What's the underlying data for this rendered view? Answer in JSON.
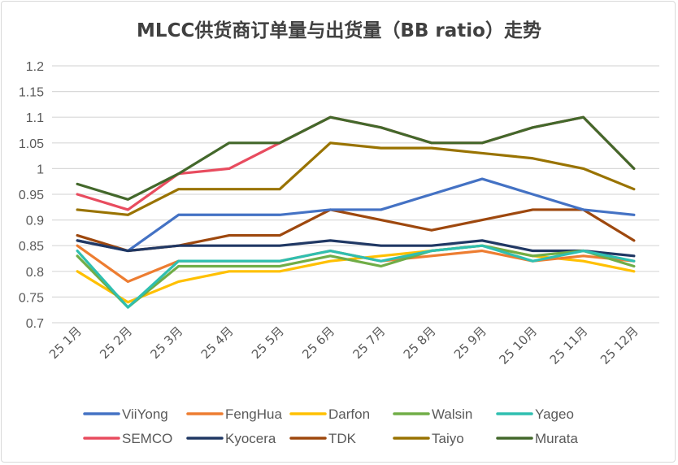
{
  "chart_data": {
    "type": "line",
    "title": "MLCC供货商订单量与出货量（BB ratio）走势",
    "xlabel": "",
    "ylabel": "",
    "ylim": [
      0.7,
      1.2
    ],
    "yticks": [
      "0.7",
      "0.75",
      "0.8",
      "0.85",
      "0.9",
      "0.95",
      "1",
      "1.05",
      "1.1",
      "1.15",
      "1.2"
    ],
    "grid": true,
    "legend": "bottom",
    "categories": [
      "25 1月",
      "25 2月",
      "25 3月",
      "25 4月",
      "25 5月",
      "25 6月",
      "25 7月",
      "25 8月",
      "25 9月",
      "25 10月",
      "25 11月",
      "25 12月"
    ],
    "series": [
      {
        "name": "ViiYong",
        "color": "#4472c4",
        "values": [
          0.86,
          0.84,
          0.91,
          0.91,
          0.91,
          0.92,
          0.92,
          0.95,
          0.98,
          0.95,
          0.92,
          0.91
        ]
      },
      {
        "name": "FengHua",
        "color": "#ed7d31",
        "values": [
          0.85,
          0.78,
          0.82,
          0.82,
          0.82,
          0.84,
          0.82,
          0.83,
          0.84,
          0.82,
          0.83,
          0.82
        ]
      },
      {
        "name": "Darfon",
        "color": "#ffc000",
        "values": [
          0.8,
          0.74,
          0.78,
          0.8,
          0.8,
          0.82,
          0.83,
          0.84,
          0.85,
          0.83,
          0.82,
          0.8
        ]
      },
      {
        "name": "Walsin",
        "color": "#70ad47",
        "values": [
          0.83,
          0.73,
          0.81,
          0.81,
          0.81,
          0.83,
          0.81,
          0.84,
          0.85,
          0.83,
          0.84,
          0.81
        ]
      },
      {
        "name": "Yageo",
        "color": "#2fbfb0",
        "values": [
          0.84,
          0.73,
          0.82,
          0.82,
          0.82,
          0.84,
          0.82,
          0.84,
          0.85,
          0.82,
          0.84,
          0.82
        ]
      },
      {
        "name": "SEMCO",
        "color": "#e84c5f",
        "values": [
          0.95,
          0.92,
          0.99,
          1.0,
          1.05,
          1.1,
          1.08,
          1.05,
          1.05,
          1.08,
          1.1,
          1.0
        ]
      },
      {
        "name": "Kyocera",
        "color": "#203864",
        "values": [
          0.86,
          0.84,
          0.85,
          0.85,
          0.85,
          0.86,
          0.85,
          0.85,
          0.86,
          0.84,
          0.84,
          0.83
        ]
      },
      {
        "name": "TDK",
        "color": "#9e480e",
        "values": [
          0.87,
          0.84,
          0.85,
          0.87,
          0.87,
          0.92,
          0.9,
          0.88,
          0.9,
          0.92,
          0.92,
          0.86
        ]
      },
      {
        "name": "Taiyo",
        "color": "#997300",
        "values": [
          0.92,
          0.91,
          0.96,
          0.96,
          0.96,
          1.05,
          1.04,
          1.04,
          1.03,
          1.02,
          1.0,
          0.96
        ]
      },
      {
        "name": "Murata",
        "color": "#43682b",
        "values": [
          0.97,
          0.94,
          0.99,
          1.05,
          1.05,
          1.1,
          1.08,
          1.05,
          1.05,
          1.08,
          1.1,
          1.0
        ]
      }
    ]
  }
}
